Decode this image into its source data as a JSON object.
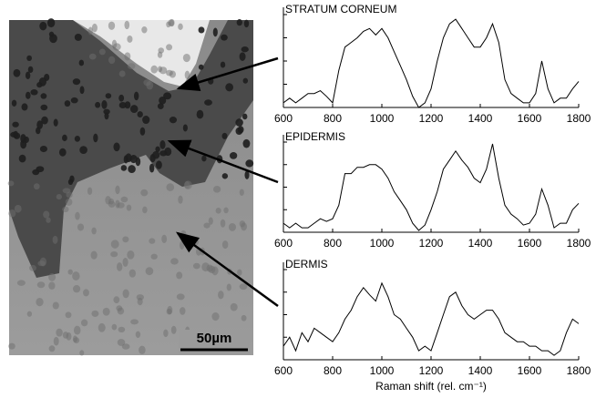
{
  "image": {
    "scale_bar": "50µm"
  },
  "chart_data": [
    {
      "type": "line",
      "title": "STRATUM CORNEUM",
      "x": [
        600,
        625,
        650,
        675,
        700,
        725,
        750,
        775,
        800,
        825,
        850,
        875,
        900,
        925,
        950,
        975,
        1000,
        1025,
        1050,
        1075,
        1100,
        1125,
        1150,
        1175,
        1200,
        1225,
        1250,
        1275,
        1300,
        1325,
        1350,
        1375,
        1400,
        1425,
        1450,
        1475,
        1500,
        1525,
        1550,
        1575,
        1600,
        1625,
        1650,
        1675,
        1700,
        1725,
        1750,
        1775,
        1800
      ],
      "series": [
        {
          "color": "#000000",
          "values": [
            0.05,
            0.1,
            0.05,
            0.1,
            0.15,
            0.15,
            0.18,
            0.12,
            0.05,
            0.4,
            0.65,
            0.7,
            0.75,
            0.82,
            0.85,
            0.78,
            0.85,
            0.75,
            0.6,
            0.45,
            0.3,
            0.12,
            0.0,
            0.05,
            0.2,
            0.5,
            0.75,
            0.9,
            0.95,
            0.85,
            0.75,
            0.65,
            0.65,
            0.75,
            0.9,
            0.7,
            0.3,
            0.15,
            0.1,
            0.05,
            0.05,
            0.15,
            0.5,
            0.2,
            0.05,
            0.1,
            0.1,
            0.2,
            0.28
          ]
        }
      ],
      "xlim": [
        600,
        1800
      ],
      "xticks": [
        600,
        800,
        1000,
        1200,
        1400,
        1600,
        1800
      ],
      "ylim": [
        0,
        1
      ]
    },
    {
      "type": "line",
      "title": "EPIDERMIS",
      "x": [
        600,
        625,
        650,
        675,
        700,
        725,
        750,
        775,
        800,
        825,
        850,
        875,
        900,
        925,
        950,
        975,
        1000,
        1025,
        1050,
        1075,
        1100,
        1125,
        1150,
        1175,
        1200,
        1225,
        1250,
        1275,
        1300,
        1325,
        1350,
        1375,
        1400,
        1425,
        1450,
        1475,
        1500,
        1525,
        1550,
        1575,
        1600,
        1625,
        1650,
        1675,
        1700,
        1725,
        1750,
        1775,
        1800
      ],
      "series": [
        {
          "color": "#000000",
          "values": [
            0.1,
            0.05,
            0.1,
            0.05,
            0.05,
            0.1,
            0.15,
            0.12,
            0.15,
            0.3,
            0.65,
            0.65,
            0.72,
            0.72,
            0.75,
            0.75,
            0.7,
            0.6,
            0.45,
            0.35,
            0.25,
            0.1,
            0.02,
            0.08,
            0.25,
            0.45,
            0.7,
            0.8,
            0.9,
            0.8,
            0.72,
            0.6,
            0.55,
            0.7,
            0.98,
            0.6,
            0.3,
            0.2,
            0.15,
            0.08,
            0.1,
            0.2,
            0.48,
            0.3,
            0.05,
            0.1,
            0.1,
            0.25,
            0.32
          ]
        }
      ],
      "xlim": [
        600,
        1800
      ],
      "xticks": [
        600,
        800,
        1000,
        1200,
        1400,
        1600,
        1800
      ],
      "ylim": [
        0,
        1
      ]
    },
    {
      "type": "line",
      "title": "DERMIS",
      "xlabel": "Raman shift (rel. cm⁻¹)",
      "x": [
        600,
        625,
        650,
        675,
        700,
        725,
        750,
        775,
        800,
        825,
        850,
        875,
        900,
        925,
        950,
        975,
        1000,
        1025,
        1050,
        1075,
        1100,
        1125,
        1150,
        1175,
        1200,
        1225,
        1250,
        1275,
        1300,
        1325,
        1350,
        1375,
        1400,
        1425,
        1450,
        1475,
        1500,
        1525,
        1550,
        1575,
        1600,
        1625,
        1650,
        1675,
        1700,
        1725,
        1750,
        1775,
        1800
      ],
      "series": [
        {
          "color": "#000000",
          "values": [
            0.15,
            0.25,
            0.1,
            0.3,
            0.2,
            0.35,
            0.3,
            0.25,
            0.2,
            0.3,
            0.45,
            0.55,
            0.7,
            0.8,
            0.72,
            0.65,
            0.85,
            0.7,
            0.5,
            0.45,
            0.35,
            0.25,
            0.1,
            0.15,
            0.1,
            0.3,
            0.5,
            0.7,
            0.75,
            0.6,
            0.5,
            0.45,
            0.5,
            0.55,
            0.55,
            0.45,
            0.3,
            0.25,
            0.2,
            0.2,
            0.15,
            0.15,
            0.1,
            0.1,
            0.05,
            0.1,
            0.3,
            0.45,
            0.4
          ]
        }
      ],
      "xlim": [
        600,
        1800
      ],
      "xticks": [
        600,
        800,
        1000,
        1200,
        1400,
        1600,
        1800
      ],
      "ylim": [
        0,
        1
      ]
    }
  ]
}
